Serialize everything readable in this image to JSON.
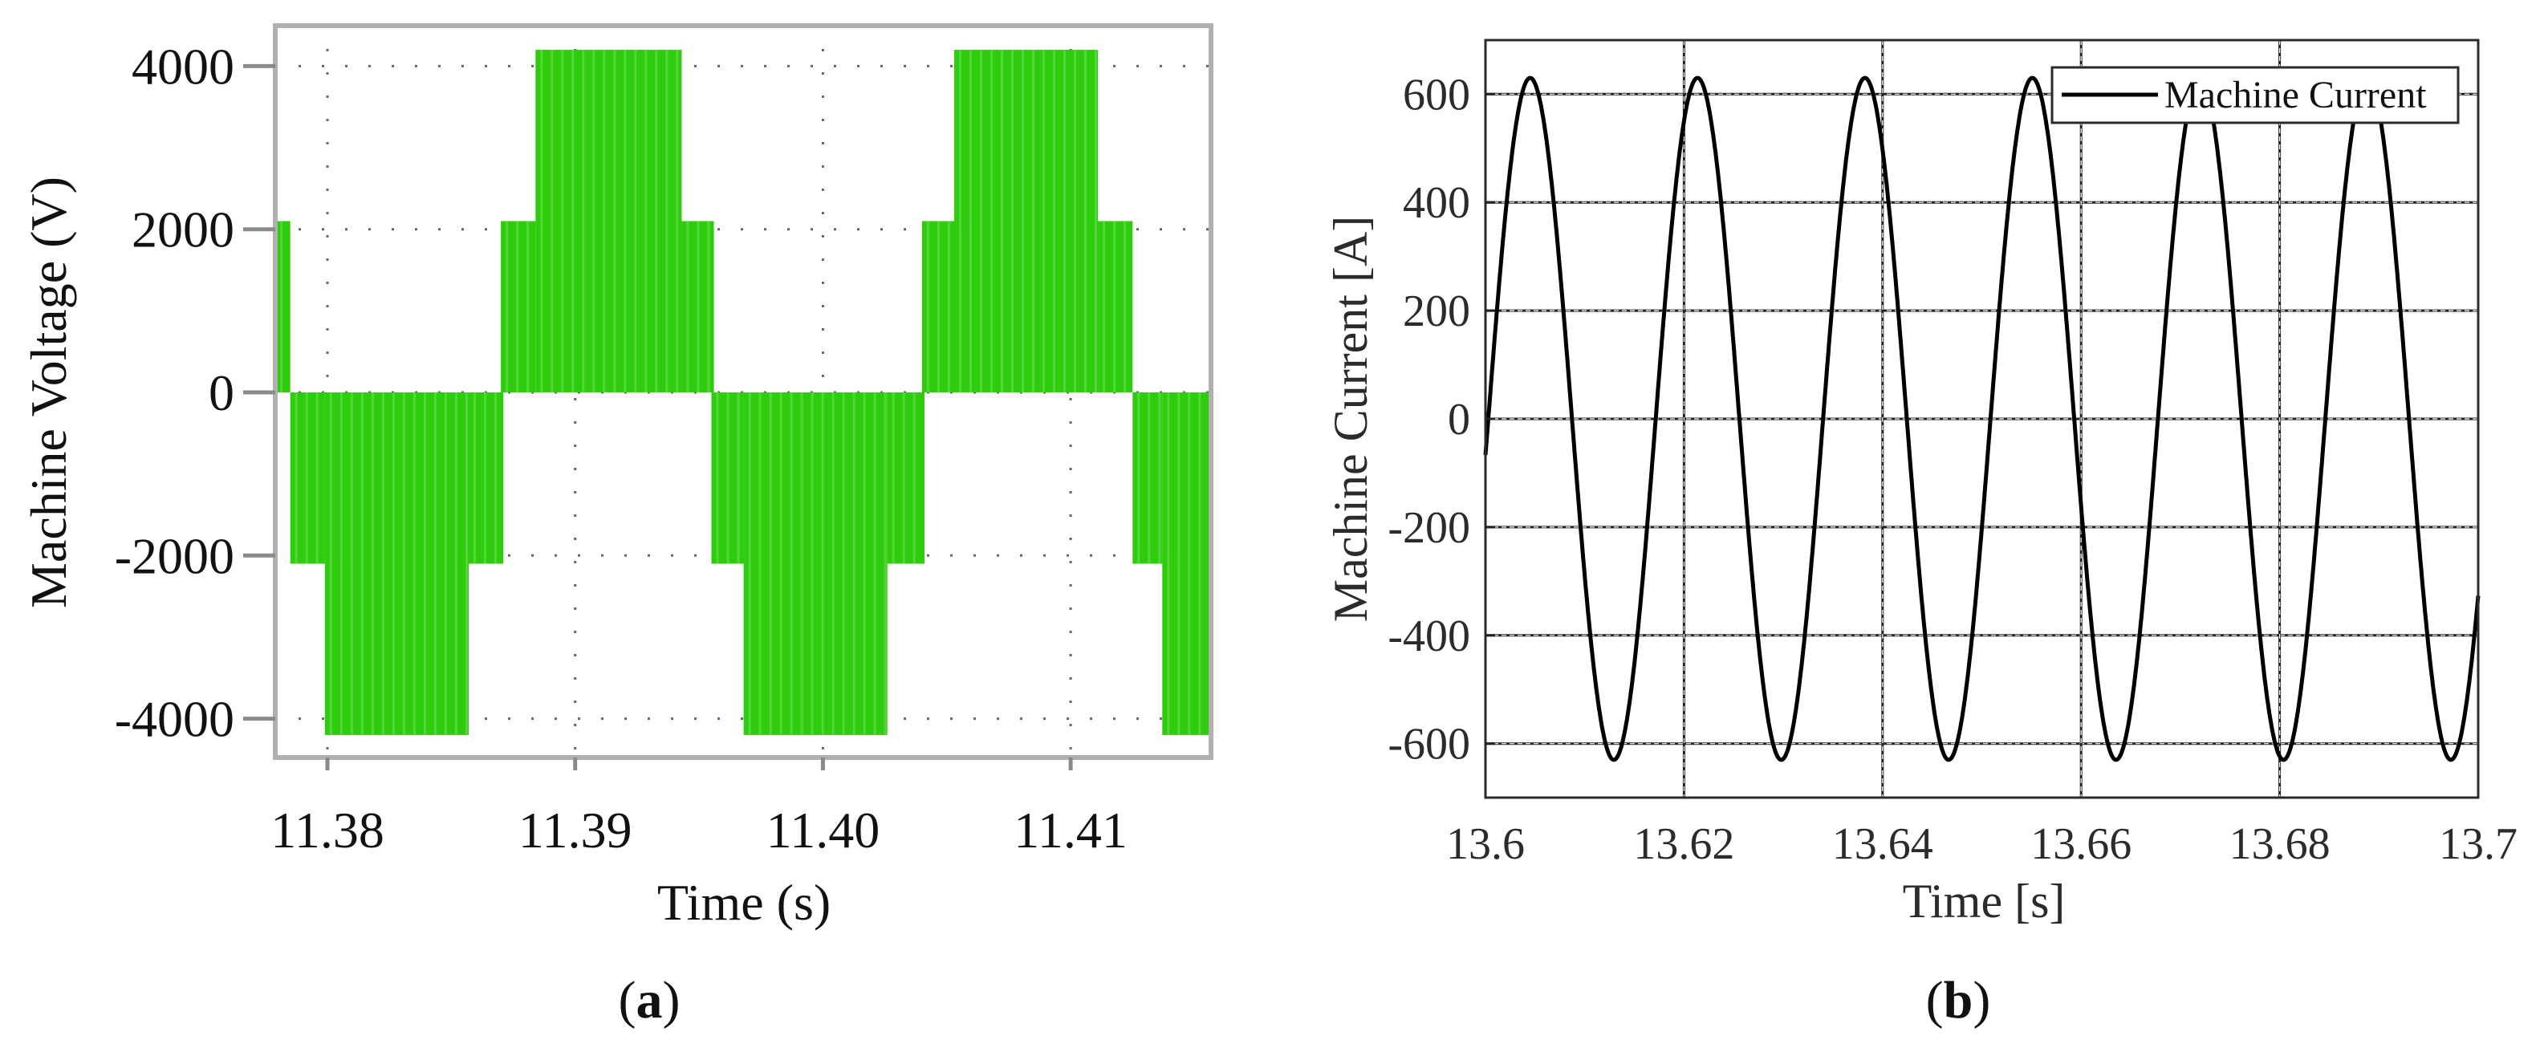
{
  "figure": {
    "panel_a_label": "a",
    "panel_b_label": "b"
  },
  "chart_data": [
    {
      "id": "a",
      "type": "line",
      "style": "multilevel PWM voltage (filled switching bands)",
      "title": "",
      "xlabel": "Time (s)",
      "ylabel": "Machine Voltage (V)",
      "xlim": [
        11.3779,
        11.4157
      ],
      "ylim": [
        -4500,
        4500
      ],
      "xticks": [
        11.38,
        11.39,
        11.4,
        11.41
      ],
      "xtick_labels": [
        "11.38",
        "11.39",
        "11.40",
        "11.41"
      ],
      "yticks": [
        4000,
        2000,
        0,
        -2000,
        -4000
      ],
      "ytick_labels": [
        "4000",
        "2000",
        "0",
        "-2000",
        "-4000"
      ],
      "grid": "dotted",
      "color": "#2ecc0c",
      "levels": [
        -4200,
        -2100,
        0,
        2100,
        4200
      ],
      "segments": [
        {
          "t0": 11.3779,
          "t1": 11.3785,
          "from": 0,
          "to": 2100
        },
        {
          "t0": 11.3785,
          "t1": 11.3799,
          "from": -2100,
          "to": 0
        },
        {
          "t0": 11.3799,
          "t1": 11.3857,
          "from": -4200,
          "to": 0
        },
        {
          "t0": 11.3857,
          "t1": 11.3871,
          "from": -2100,
          "to": 0
        },
        {
          "t0": 11.387,
          "t1": 11.3884,
          "from": 0,
          "to": 2100
        },
        {
          "t0": 11.3884,
          "t1": 11.3943,
          "from": 0,
          "to": 4200
        },
        {
          "t0": 11.3943,
          "t1": 11.3956,
          "from": 0,
          "to": 2100
        },
        {
          "t0": 11.3955,
          "t1": 11.3968,
          "from": -2100,
          "to": 0
        },
        {
          "t0": 11.3968,
          "t1": 11.4026,
          "from": -4200,
          "to": 0
        },
        {
          "t0": 11.4026,
          "t1": 11.4041,
          "from": -2100,
          "to": 0
        },
        {
          "t0": 11.404,
          "t1": 11.4053,
          "from": 0,
          "to": 2100
        },
        {
          "t0": 11.4053,
          "t1": 11.4111,
          "from": 0,
          "to": 4200
        },
        {
          "t0": 11.4111,
          "t1": 11.4125,
          "from": 0,
          "to": 2100
        },
        {
          "t0": 11.4125,
          "t1": 11.4137,
          "from": -2100,
          "to": 0
        },
        {
          "t0": 11.4137,
          "t1": 11.4157,
          "from": -4200,
          "to": 0
        }
      ]
    },
    {
      "id": "b",
      "type": "line",
      "title": "",
      "xlabel": "Time [s]",
      "ylabel": "Machine Current [A]",
      "xlim": [
        13.6,
        13.7
      ],
      "ylim": [
        -700,
        700
      ],
      "xticks": [
        13.6,
        13.62,
        13.64,
        13.66,
        13.68,
        13.7
      ],
      "xtick_labels": [
        "13.6",
        "13.62",
        "13.64",
        "13.66",
        "13.68",
        "13.7"
      ],
      "yticks": [
        600,
        400,
        200,
        0,
        -200,
        -400,
        -600
      ],
      "ytick_labels": [
        "600",
        "400",
        "200",
        "0",
        "-200",
        "-400",
        "-600"
      ],
      "grid": "on",
      "legend": {
        "position": "upper right",
        "entries": [
          "Machine Current"
        ]
      },
      "series": [
        {
          "name": "Machine Current",
          "color": "#000000",
          "kind": "sinusoid",
          "amplitude": 630,
          "frequency_hz": 59.3,
          "first_peak_time": 13.6045,
          "approx_points": [
            {
              "t": 13.6,
              "i": 0
            },
            {
              "t": 13.6045,
              "i": 630
            },
            {
              "t": 13.6129,
              "i": -630
            },
            {
              "t": 13.6214,
              "i": 630
            },
            {
              "t": 13.6298,
              "i": -630
            },
            {
              "t": 13.6383,
              "i": 630
            },
            {
              "t": 13.6467,
              "i": -630
            },
            {
              "t": 13.6551,
              "i": 630
            },
            {
              "t": 13.6636,
              "i": -630
            },
            {
              "t": 13.672,
              "i": 630
            },
            {
              "t": 13.6805,
              "i": -630
            },
            {
              "t": 13.6889,
              "i": 630
            },
            {
              "t": 13.6973,
              "i": -630
            },
            {
              "t": 13.7,
              "i": -330
            }
          ]
        }
      ]
    }
  ]
}
